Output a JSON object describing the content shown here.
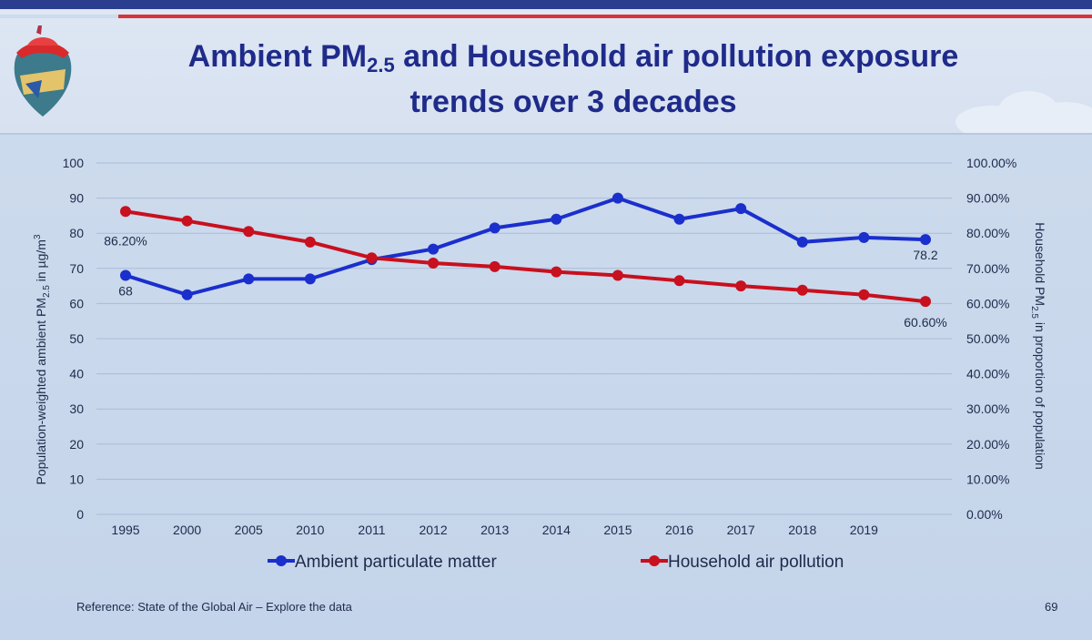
{
  "slide": {
    "title_line1_a": "Ambient PM",
    "title_line1_sub": "2.5",
    "title_line1_b": " and Household air pollution exposure",
    "title_line2": "trends over 3 decades",
    "reference": "Reference: State of the Global Air – Explore the data",
    "page_number": "69"
  },
  "colors": {
    "title": "#1f2b8a",
    "ambient": "#1a2fcc",
    "household": "#c8101e",
    "grid": "#a9bbd6",
    "text": "#1f2a4a"
  },
  "chart_data": {
    "type": "line",
    "categories": [
      "1995",
      "2000",
      "2005",
      "2010",
      "2011",
      "2012",
      "2013",
      "2014",
      "2015",
      "2016",
      "2017",
      "2018",
      "2019",
      ""
    ],
    "y_left": {
      "label": "Population-weighted ambient PM",
      "label_sub": "2.5",
      "label_unit": " in µg/m",
      "label_sup": "3",
      "range": [
        0,
        100
      ],
      "ticks": [
        "0",
        "10",
        "20",
        "30",
        "40",
        "50",
        "60",
        "70",
        "80",
        "90",
        "100"
      ]
    },
    "y_right": {
      "label": "Household PM",
      "label_sub": "2.5",
      "label_rest": " in proportion of population",
      "range": [
        0,
        100
      ],
      "ticks": [
        "0.00%",
        "10.00%",
        "20.00%",
        "30.00%",
        "40.00%",
        "50.00%",
        "60.00%",
        "70.00%",
        "80.00%",
        "90.00%",
        "100.00%"
      ]
    },
    "series": [
      {
        "name": "Ambient particulate matter",
        "axis": "left",
        "values": [
          68,
          62.5,
          67,
          67,
          72.5,
          75.5,
          81.5,
          84,
          90,
          84,
          87,
          77.5,
          78.8,
          78.2
        ],
        "first_label": "68",
        "last_label": "78.2"
      },
      {
        "name": "Household air pollution",
        "axis": "right",
        "values": [
          86.2,
          83.5,
          80.5,
          77.5,
          73,
          71.5,
          70.5,
          69,
          68,
          66.5,
          65,
          63.8,
          62.5,
          60.6
        ],
        "first_label": "86.20%",
        "last_label": "60.60%"
      }
    ],
    "grid": true,
    "legend": "bottom"
  }
}
